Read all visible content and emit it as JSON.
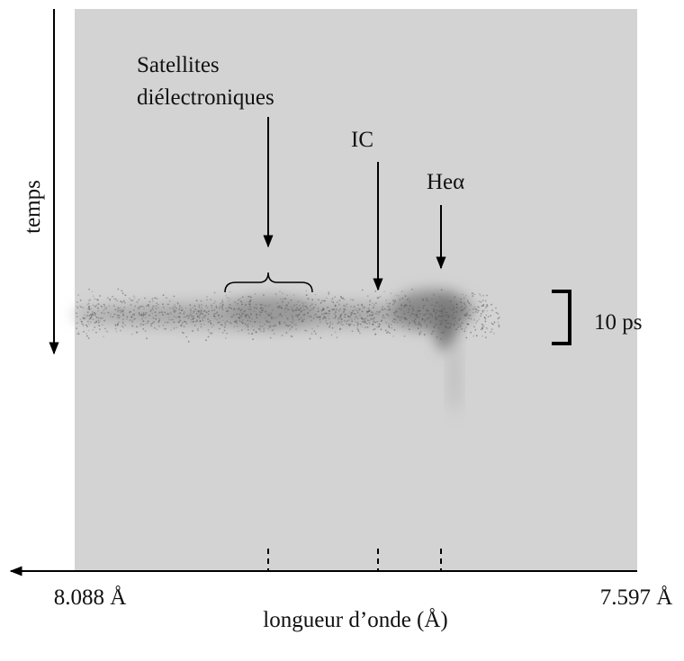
{
  "axes": {
    "y_label": "temps",
    "x_label": "longueur d’onde (Å)",
    "x_left": "8.088 Å",
    "x_right": "7.597 Å"
  },
  "annotations": [
    {
      "lines": [
        "Satellites",
        "diélectroniques"
      ]
    },
    {
      "lines": [
        "IC"
      ]
    },
    {
      "lines": [
        "Heα"
      ]
    }
  ],
  "scale_label": "10 ps"
}
